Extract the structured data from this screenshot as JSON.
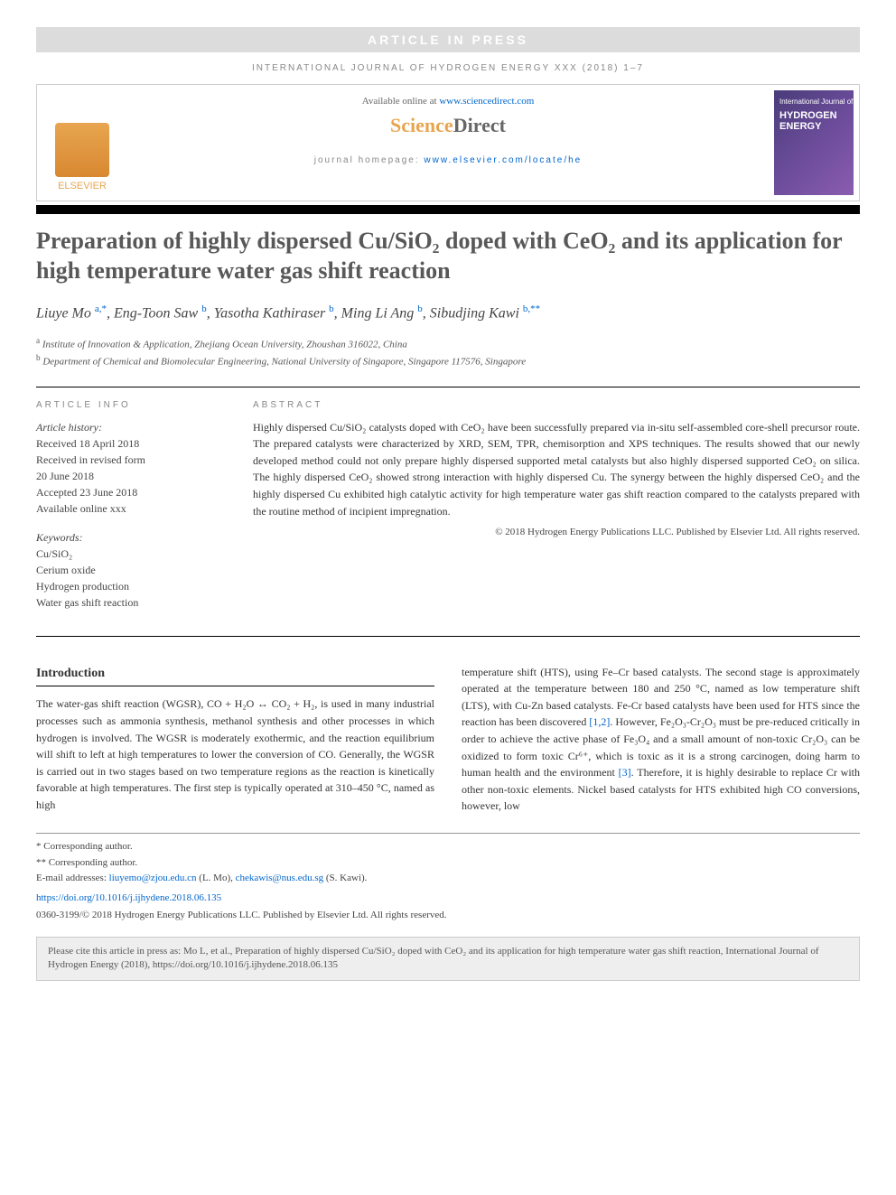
{
  "banner": "ARTICLE IN PRESS",
  "journal_ref": "INTERNATIONAL JOURNAL OF HYDROGEN ENERGY XXX (2018) 1–7",
  "header": {
    "available_text": "Available online at ",
    "sd_url": "www.sciencedirect.com",
    "sciencedirect": "ScienceDirect",
    "homepage_label": "journal homepage: ",
    "homepage_url": "www.elsevier.com/locate/he",
    "elsevier": "ELSEVIER",
    "cover_small": "International Journal of",
    "cover_main": "HYDROGEN ENERGY"
  },
  "title": "Preparation of highly dispersed Cu/SiO₂ doped with CeO₂ and its application for high temperature water gas shift reaction",
  "authors_html": "Liuye Mo <sup>a,*</sup>, Eng-Toon Saw <sup>b</sup>, Yasotha Kathiraser <sup>b</sup>, Ming Li Ang <sup>b</sup>, Sibudjing Kawi <sup>b,**</sup>",
  "affiliations": {
    "a": "Institute of Innovation & Application, Zhejiang Ocean University, Zhoushan 316022, China",
    "b": "Department of Chemical and Biomolecular Engineering, National University of Singapore, Singapore 117576, Singapore"
  },
  "info": {
    "heading": "ARTICLE INFO",
    "history_label": "Article history:",
    "history": [
      "Received 18 April 2018",
      "Received in revised form",
      "20 June 2018",
      "Accepted 23 June 2018",
      "Available online xxx"
    ],
    "keywords_label": "Keywords:",
    "keywords": [
      "Cu/SiO₂",
      "Cerium oxide",
      "Hydrogen production",
      "Water gas shift reaction"
    ]
  },
  "abstract": {
    "heading": "ABSTRACT",
    "text": "Highly dispersed Cu/SiO₂ catalysts doped with CeO₂ have been successfully prepared via in-situ self-assembled core-shell precursor route. The prepared catalysts were characterized by XRD, SEM, TPR, chemisorption and XPS techniques. The results showed that our newly developed method could not only prepare highly dispersed supported metal catalysts but also highly dispersed supported CeO₂ on silica. The highly dispersed CeO₂ showed strong interaction with highly dispersed Cu. The synergy between the highly dispersed CeO₂ and the highly dispersed Cu exhibited high catalytic activity for high temperature water gas shift reaction compared to the catalysts prepared with the routine method of incipient impregnation.",
    "copyright": "© 2018 Hydrogen Energy Publications LLC. Published by Elsevier Ltd. All rights reserved."
  },
  "intro": {
    "heading": "Introduction",
    "col1": "The water-gas shift reaction (WGSR), CO + H₂O ↔ CO₂ + H₂, is used in many industrial processes such as ammonia synthesis, methanol synthesis and other processes in which hydrogen is involved. The WGSR is moderately exothermic, and the reaction equilibrium will shift to left at high temperatures to lower the conversion of CO. Generally, the WGSR is carried out in two stages based on two temperature regions as the reaction is kinetically favorable at high temperatures. The first step is typically operated at 310–450 °C, named as high",
    "col2_a": "temperature shift (HTS), using Fe–Cr based catalysts. The second stage is approximately operated at the temperature between 180 and 250 °C, named as low temperature shift (LTS), with Cu-Zn based catalysts. Fe-Cr based catalysts have been used for HTS since the reaction has been discovered ",
    "col2_ref1": "[1,2]",
    "col2_b": ". However, Fe₂O₃-Cr₂O₃ must be pre-reduced critically in order to achieve the active phase of Fe₃O₄ and a small amount of non-toxic Cr₂O₃ can be oxidized to form toxic Cr⁶⁺, which is toxic as it is a strong carcinogen, doing harm to human health and the environment ",
    "col2_ref2": "[3]",
    "col2_c": ". Therefore, it is highly desirable to replace Cr with other non-toxic elements. Nickel based catalysts for HTS exhibited high CO conversions, however, low"
  },
  "footnotes": {
    "corr1": "* Corresponding author.",
    "corr2": "** Corresponding author.",
    "email_label": "E-mail addresses: ",
    "email1": "liuyemo@zjou.edu.cn",
    "email1_name": " (L. Mo), ",
    "email2": "chekawis@nus.edu.sg",
    "email2_name": " (S. Kawi).",
    "doi": "https://doi.org/10.1016/j.ijhydene.2018.06.135",
    "issn": "0360-3199/© 2018 Hydrogen Energy Publications LLC. Published by Elsevier Ltd. All rights reserved."
  },
  "cite_box": "Please cite this article in press as: Mo L, et al., Preparation of highly dispersed Cu/SiO₂ doped with CeO₂ and its application for high temperature water gas shift reaction, International Journal of Hydrogen Energy (2018), https://doi.org/10.1016/j.ijhydene.2018.06.135"
}
